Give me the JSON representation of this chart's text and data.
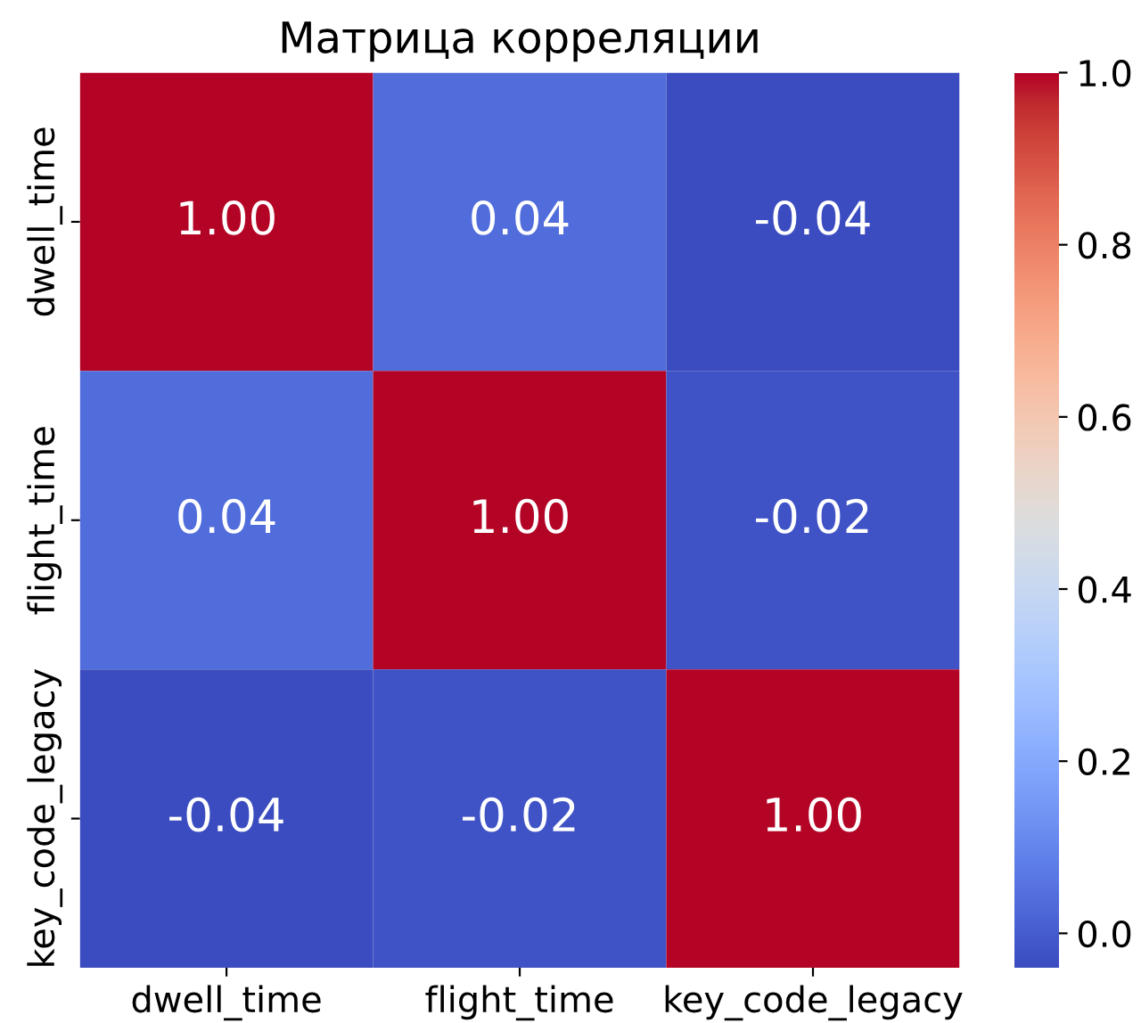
{
  "chart_data": {
    "type": "heatmap",
    "title": "Матрица корреляции",
    "categories": [
      "dwell_time",
      "flight_time",
      "key_code_legacy"
    ],
    "y_categories": [
      "dwell_time",
      "flight_time",
      "key_code_legacy"
    ],
    "cells": [
      [
        1.0,
        0.04,
        -0.04
      ],
      [
        0.04,
        1.0,
        -0.02
      ],
      [
        -0.04,
        -0.02,
        1.0
      ]
    ],
    "cell_labels": [
      [
        "1.00",
        "0.04",
        "-0.04"
      ],
      [
        "0.04",
        "1.00",
        "-0.02"
      ],
      [
        "-0.04",
        "-0.02",
        "1.00"
      ]
    ],
    "clim": [
      -0.04,
      1.0
    ],
    "cticks": [
      {
        "value": 0,
        "label": "0.0"
      },
      {
        "value": 0.2,
        "label": "0.2"
      },
      {
        "value": 0.4,
        "label": "0.4"
      },
      {
        "value": 0.6,
        "label": "0.6"
      },
      {
        "value": 0.8,
        "label": "0.8"
      },
      {
        "value": 1.0,
        "label": "1.0"
      }
    ]
  }
}
